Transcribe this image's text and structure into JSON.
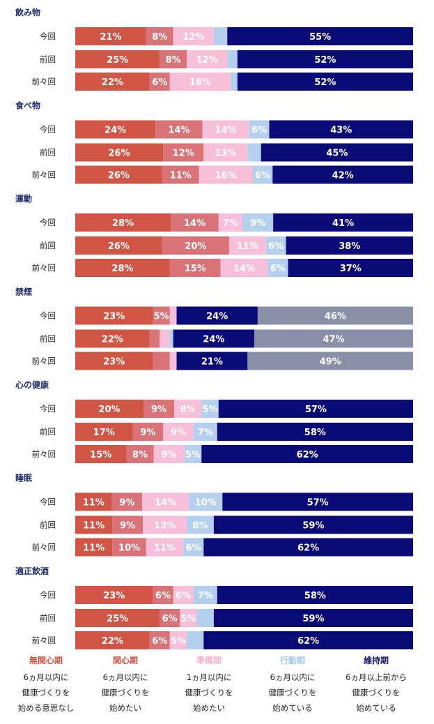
{
  "chart_data": {
    "type": "bar",
    "orientation": "horizontal",
    "stacked": true,
    "percent_suffix": "%",
    "rows": [
      "今回",
      "前回",
      "前々回"
    ],
    "stages": [
      {
        "name": "無関心期",
        "desc": [
          "6ヵ月以内に",
          "健康づくりを",
          "始める意思なし"
        ],
        "color": "#d05544",
        "label_color": "#ffffff"
      },
      {
        "name": "関心期",
        "desc": [
          "6ヵ月以内に",
          "健康づくりを",
          "始めたい"
        ],
        "color": "#d97377",
        "label_color": "#ffffff"
      },
      {
        "name": "準備期",
        "desc": [
          "1ヵ月以内に",
          "健康づくりを",
          "始めたい"
        ],
        "color": "#f7bfda",
        "label_color": "#ffffff"
      },
      {
        "name": "行動期",
        "desc": [
          "6ヵ月以内に",
          "健康づくりを",
          "始めている"
        ],
        "color": "#b4d0ee",
        "label_color": "#ffffff"
      },
      {
        "name": "維持期",
        "desc": [
          "6ヵ月以上前から",
          "健康づくりを",
          "始めている"
        ],
        "color": "#0b0b78",
        "label_color": "#ffffff"
      }
    ],
    "legend_title_colors": [
      "#d05544",
      "#d05544",
      "#f4b3cf",
      "#a9c8ec",
      "#1a1a6e"
    ],
    "extra_color": "#8a8fa8",
    "groups": [
      {
        "title": "飲み物",
        "bars": [
          {
            "values": [
              21,
              8,
              12,
              4,
              55
            ],
            "labels": [
              "21",
              "8",
              "12",
              "",
              "55"
            ]
          },
          {
            "values": [
              25,
              8,
              12,
              3,
              52
            ],
            "labels": [
              "25",
              "8",
              "12",
              "",
              "52"
            ]
          },
          {
            "values": [
              22,
              6,
              18,
              2,
              52
            ],
            "labels": [
              "22",
              "6",
              "18",
              "",
              "52"
            ]
          }
        ]
      },
      {
        "title": "食べ物",
        "bars": [
          {
            "values": [
              24,
              14,
              14,
              6,
              43
            ],
            "labels": [
              "24",
              "14",
              "14",
              "6",
              "43"
            ]
          },
          {
            "values": [
              26,
              12,
              13,
              4,
              45
            ],
            "labels": [
              "26",
              "12",
              "13",
              "",
              "45"
            ]
          },
          {
            "values": [
              26,
              11,
              16,
              6,
              42
            ],
            "labels": [
              "26",
              "11",
              "16",
              "6",
              "42"
            ]
          }
        ]
      },
      {
        "title": "運動",
        "bars": [
          {
            "values": [
              28,
              14,
              7,
              9,
              41
            ],
            "labels": [
              "28",
              "14",
              "7",
              "9",
              "41"
            ]
          },
          {
            "values": [
              26,
              20,
              11,
              6,
              38
            ],
            "labels": [
              "26",
              "20",
              "11",
              "6",
              "38"
            ]
          },
          {
            "values": [
              28,
              15,
              14,
              6,
              37
            ],
            "labels": [
              "28",
              "15",
              "14",
              "6",
              "37"
            ]
          }
        ]
      },
      {
        "title": "禁煙",
        "bars": [
          {
            "values": [
              23,
              5,
              2,
              0,
              24,
              46
            ],
            "labels": [
              "23",
              "5",
              "",
              "",
              "24",
              "46"
            ]
          },
          {
            "values": [
              22,
              3,
              3,
              1,
              24,
              47
            ],
            "labels": [
              "22",
              "",
              "",
              "",
              "24",
              "47"
            ]
          },
          {
            "values": [
              23,
              5,
              2,
              0,
              21,
              49
            ],
            "labels": [
              "23",
              "",
              "",
              "",
              "21",
              "49"
            ]
          }
        ]
      },
      {
        "title": "心の健康",
        "bars": [
          {
            "values": [
              20,
              9,
              8,
              5,
              57
            ],
            "labels": [
              "20",
              "9",
              "8",
              "5",
              "57"
            ]
          },
          {
            "values": [
              17,
              9,
              9,
              7,
              58
            ],
            "labels": [
              "17",
              "9",
              "9",
              "7",
              "58"
            ]
          },
          {
            "values": [
              15,
              8,
              9,
              5,
              62
            ],
            "labels": [
              "15",
              "8",
              "9",
              "5",
              "62"
            ]
          }
        ]
      },
      {
        "title": "睡眠",
        "bars": [
          {
            "values": [
              11,
              9,
              14,
              10,
              57
            ],
            "labels": [
              "11",
              "9",
              "14",
              "10",
              "57"
            ]
          },
          {
            "values": [
              11,
              9,
              13,
              8,
              59
            ],
            "labels": [
              "11",
              "9",
              "13",
              "8",
              "59"
            ]
          },
          {
            "values": [
              11,
              10,
              11,
              6,
              62
            ],
            "labels": [
              "11",
              "10",
              "11",
              "6",
              "62"
            ]
          }
        ]
      },
      {
        "title": "適正飲酒",
        "bars": [
          {
            "values": [
              23,
              6,
              6,
              7,
              58
            ],
            "labels": [
              "23",
              "6",
              "6",
              "7",
              "58"
            ]
          },
          {
            "values": [
              25,
              6,
              5,
              5,
              59
            ],
            "labels": [
              "25",
              "6",
              "5",
              "",
              "59"
            ]
          },
          {
            "values": [
              22,
              6,
              5,
              5,
              62
            ],
            "labels": [
              "22",
              "6",
              "5",
              "",
              "62"
            ]
          }
        ]
      }
    ]
  }
}
